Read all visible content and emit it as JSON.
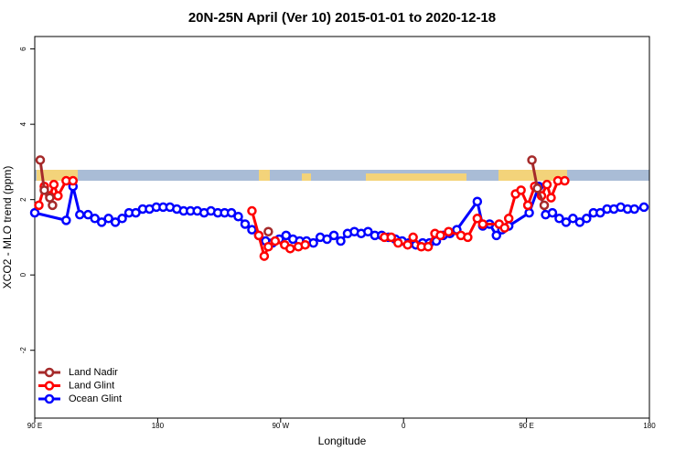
{
  "chart_data": {
    "type": "line",
    "title": "20N-25N April (Ver 10)   2015-01-01 to 2020-12-18",
    "x_label": "Longitude",
    "y_label": "XCO2 - MLO trend (ppm)",
    "xlim": [
      90,
      540
    ],
    "xticks": [
      {
        "value": 90,
        "label": "90 E"
      },
      180,
      {
        "value": 270,
        "label": "90 W"
      },
      {
        "value": 360,
        "label": "0"
      },
      {
        "value": 450,
        "label": "90 E"
      },
      {
        "value": 540,
        "label": "180"
      }
    ],
    "ylim": [
      -3.8,
      6.33
    ],
    "yticks": [
      -2,
      0,
      2,
      4,
      6
    ],
    "legend": "bottom-left",
    "series": [
      {
        "name": "Ocean Glint",
        "color": "#0000ff",
        "x": [
          90,
          113,
          118,
          123,
          129,
          134,
          139,
          144,
          149,
          154,
          159,
          164,
          169,
          174,
          179,
          184,
          189,
          194,
          199,
          204,
          209,
          214,
          219,
          224,
          229,
          234,
          239,
          244,
          249,
          254,
          259,
          264,
          269,
          274,
          279,
          284,
          289,
          294,
          299,
          304,
          309,
          314,
          319,
          324,
          329,
          334,
          339,
          344,
          349,
          354,
          359,
          364,
          369,
          374,
          379,
          384,
          389,
          394,
          399,
          414,
          418,
          423,
          428,
          432,
          437,
          452,
          459,
          464,
          469,
          474,
          479,
          484,
          489,
          494,
          499,
          504,
          509,
          514,
          519,
          524,
          529,
          536
        ],
        "values": [
          1.65,
          1.45,
          2.35,
          1.6,
          1.6,
          1.5,
          1.4,
          1.5,
          1.4,
          1.5,
          1.65,
          1.65,
          1.75,
          1.75,
          1.8,
          1.8,
          1.8,
          1.75,
          1.7,
          1.7,
          1.7,
          1.65,
          1.7,
          1.65,
          1.65,
          1.65,
          1.55,
          1.35,
          1.2,
          1.05,
          0.9,
          0.85,
          0.95,
          1.05,
          0.95,
          0.9,
          0.9,
          0.85,
          1.0,
          0.95,
          1.05,
          0.9,
          1.1,
          1.15,
          1.1,
          1.15,
          1.05,
          1.05,
          1.0,
          0.95,
          0.9,
          0.85,
          0.8,
          0.85,
          0.85,
          0.9,
          1.05,
          1.1,
          1.2,
          1.95,
          1.3,
          1.35,
          1.05,
          1.2,
          1.3,
          1.65,
          2.35,
          1.6,
          1.65,
          1.5,
          1.4,
          1.5,
          1.4,
          1.5,
          1.65,
          1.65,
          1.75,
          1.75,
          1.8,
          1.75,
          1.75,
          1.8
        ]
      },
      {
        "name": "Land Glint",
        "color": "#ff0000",
        "x": [
          93,
          97,
          101,
          104,
          107,
          113,
          118,
          null,
          249,
          254,
          258,
          261,
          266,
          273,
          277,
          283,
          288,
          null,
          346,
          351,
          356,
          363,
          367,
          373,
          378,
          383,
          387,
          393,
          402,
          407,
          414,
          418,
          430,
          434,
          437,
          442,
          446,
          451,
          456,
          461,
          465,
          468,
          473,
          478
        ],
        "values": [
          1.85,
          2.35,
          2.1,
          2.4,
          2.1,
          2.5,
          2.5,
          null,
          1.7,
          1.05,
          0.5,
          0.75,
          0.9,
          0.8,
          0.7,
          0.75,
          0.8,
          null,
          1.0,
          1.0,
          0.85,
          0.8,
          1.0,
          0.75,
          0.75,
          1.1,
          1.05,
          1.15,
          1.05,
          1.0,
          1.5,
          1.35,
          1.35,
          1.25,
          1.5,
          2.15,
          2.25,
          1.85,
          2.35,
          2.1,
          2.4,
          2.05,
          2.5,
          2.5
        ]
      },
      {
        "name": "Land Nadir",
        "color": "#a52a2a",
        "x": [
          94,
          97,
          101,
          103,
          null,
          261,
          null,
          454,
          458,
          463
        ],
        "values": [
          3.05,
          2.25,
          2.05,
          1.85,
          null,
          1.15,
          null,
          3.05,
          2.3,
          1.85
        ]
      }
    ]
  }
}
